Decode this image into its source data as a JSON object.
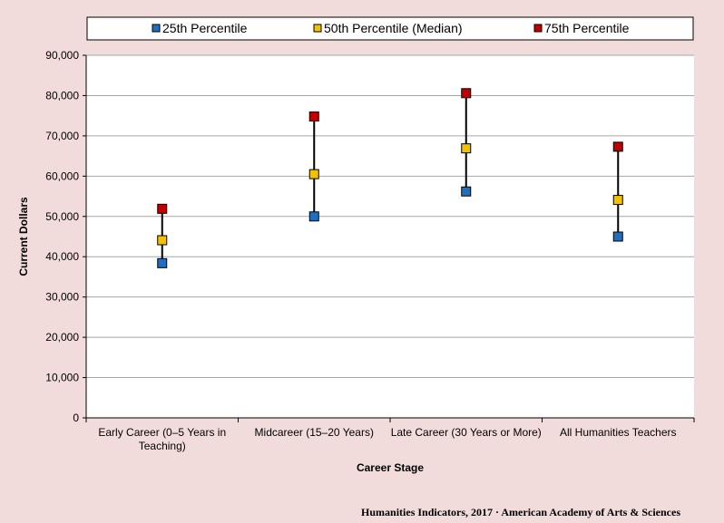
{
  "chart_data": {
    "type": "scatter",
    "categories": [
      [
        "Early Career (0–5 Years in",
        "Teaching)"
      ],
      [
        "Midcareer (15–20 Years)"
      ],
      [
        "Late Career (30 Years or More)"
      ],
      [
        "All Humanities Teachers"
      ]
    ],
    "series": [
      {
        "name": "25th Percentile",
        "color": "#1f6fbf",
        "values": [
          38400,
          50000,
          56200,
          45000
        ]
      },
      {
        "name": "50th Percentile (Median)",
        "color": "#f2c200",
        "values": [
          44100,
          60500,
          66900,
          54100
        ]
      },
      {
        "name": "75th Percentile",
        "color": "#c00000",
        "values": [
          51900,
          74800,
          80600,
          67300
        ]
      }
    ],
    "xlabel": "Career Stage",
    "ylabel": "Current Dollars",
    "ylim": [
      0,
      90000
    ],
    "yticks": [
      0,
      10000,
      20000,
      30000,
      40000,
      50000,
      60000,
      70000,
      80000,
      90000
    ],
    "grid": true,
    "legend": "top",
    "source": "Humanities Indicators, 2017 · American Academy of Arts & Sciences"
  }
}
